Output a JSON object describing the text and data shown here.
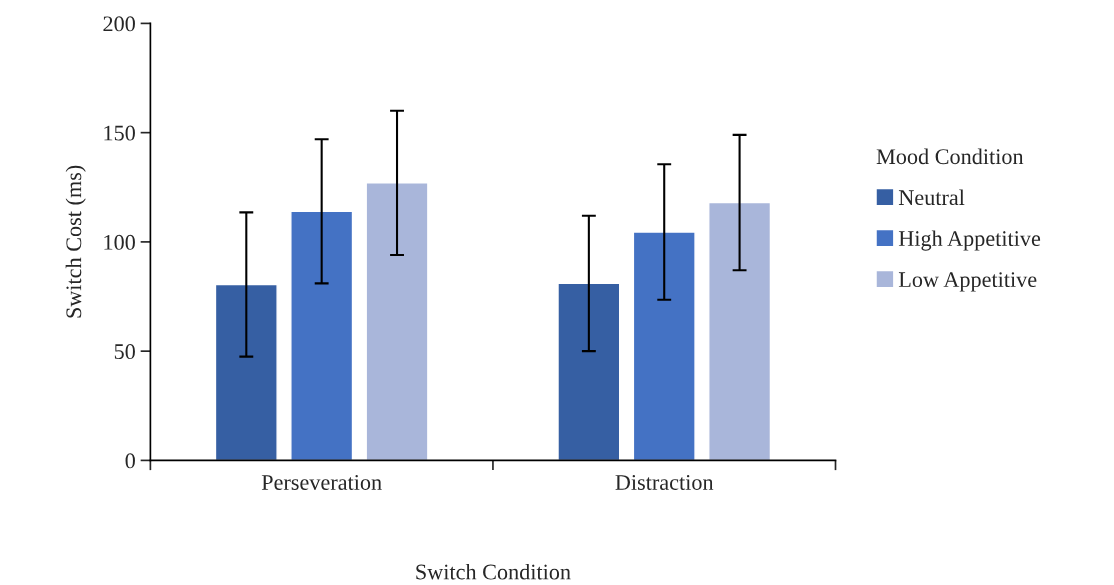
{
  "chart_data": {
    "type": "bar",
    "xlabel": "Switch Condition",
    "ylabel": "Switch Cost (ms)",
    "legend_title": "Mood Condition",
    "categories": [
      "Perseveration",
      "Distraction"
    ],
    "series": [
      {
        "name": "Neutral",
        "color": "#365fa3",
        "values": [
          80.5,
          81
        ],
        "errors": [
          33,
          31
        ]
      },
      {
        "name": "High Appetitive",
        "color": "#4472c4",
        "values": [
          114,
          104.5
        ],
        "errors": [
          33,
          31
        ]
      },
      {
        "name": "Low Appetitive",
        "color": "#a9b6da",
        "values": [
          127,
          118
        ],
        "errors": [
          33,
          31
        ]
      }
    ],
    "ylim": [
      0,
      200
    ],
    "yticks": [
      0,
      50,
      100,
      150,
      200
    ],
    "grid": false,
    "legend": "right"
  }
}
